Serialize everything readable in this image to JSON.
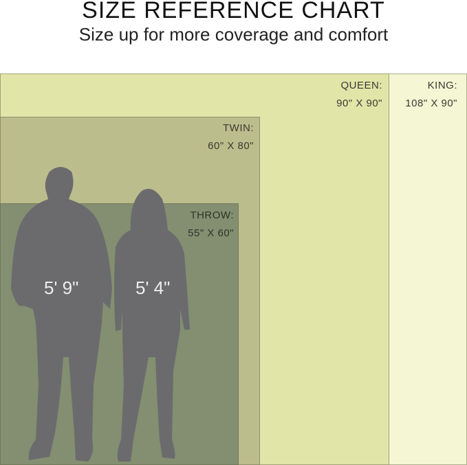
{
  "header": {
    "title": "SIZE REFERENCE CHART",
    "subtitle": "Size up for more coverage and comfort"
  },
  "sizes": [
    {
      "name": "KING:",
      "dims": "108\" X 90\"",
      "color": "#f4f6d4"
    },
    {
      "name": "QUEEN:",
      "dims": "90\" X 90\"",
      "color": "#e1e5a8"
    },
    {
      "name": "TWIN:",
      "dims": "60\" X 80\"",
      "color": "#bcbd8c"
    },
    {
      "name": "THROW:",
      "dims": "55\" X 60\"",
      "color": "#838f70"
    }
  ],
  "people": [
    {
      "height": "5' 9\""
    },
    {
      "height": "5' 4\""
    }
  ],
  "silhouette_color": "#6b6b6e"
}
